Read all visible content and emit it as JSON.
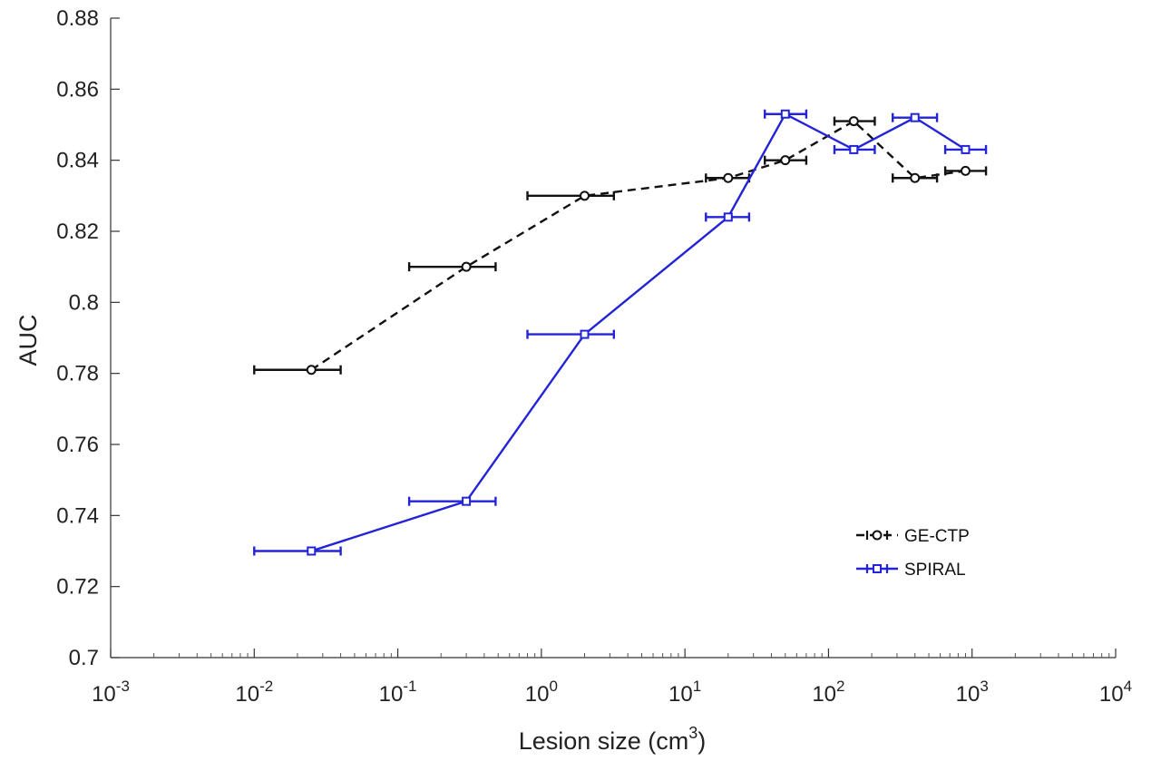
{
  "chart_data": {
    "type": "line",
    "title": "",
    "xlabel": "Lesion size (cm",
    "xlabel_superscript": "3",
    "xlabel_suffix": ")",
    "ylabel": "AUC",
    "x_scale": "log",
    "xlim": [
      0.001,
      10000
    ],
    "ylim": [
      0.7,
      0.88
    ],
    "grid": false,
    "legend_position": "bottom-right",
    "x_ticks": [
      {
        "value": 0.001,
        "base": "10",
        "exp": "-3"
      },
      {
        "value": 0.01,
        "base": "10",
        "exp": "-2"
      },
      {
        "value": 0.1,
        "base": "10",
        "exp": "-1"
      },
      {
        "value": 1,
        "base": "10",
        "exp": "0"
      },
      {
        "value": 10,
        "base": "10",
        "exp": "1"
      },
      {
        "value": 100,
        "base": "10",
        "exp": "2"
      },
      {
        "value": 1000,
        "base": "10",
        "exp": "3"
      },
      {
        "value": 10000,
        "base": "10",
        "exp": "4"
      }
    ],
    "y_ticks": [
      {
        "value": 0.7,
        "label": "0.7"
      },
      {
        "value": 0.72,
        "label": "0.72"
      },
      {
        "value": 0.74,
        "label": "0.74"
      },
      {
        "value": 0.76,
        "label": "0.76"
      },
      {
        "value": 0.78,
        "label": "0.78"
      },
      {
        "value": 0.8,
        "label": "0.8"
      },
      {
        "value": 0.82,
        "label": "0.82"
      },
      {
        "value": 0.84,
        "label": "0.84"
      },
      {
        "value": 0.86,
        "label": "0.86"
      },
      {
        "value": 0.88,
        "label": "0.88"
      }
    ],
    "series": [
      {
        "name": "GE-CTP",
        "color": "#111111",
        "line_style": "dashed",
        "marker": "circle",
        "points": [
          {
            "x": 0.025,
            "y": 0.781,
            "xerr": [
              0.01,
              0.04
            ]
          },
          {
            "x": 0.3,
            "y": 0.81,
            "xerr": [
              0.12,
              0.48
            ]
          },
          {
            "x": 2.0,
            "y": 0.83,
            "xerr": [
              0.8,
              3.2
            ]
          },
          {
            "x": 20,
            "y": 0.835,
            "xerr": [
              14,
              28
            ]
          },
          {
            "x": 50,
            "y": 0.84,
            "xerr": [
              36,
              70
            ]
          },
          {
            "x": 150,
            "y": 0.851,
            "xerr": [
              110,
              210
            ]
          },
          {
            "x": 400,
            "y": 0.835,
            "xerr": [
              280,
              570
            ]
          },
          {
            "x": 900,
            "y": 0.837,
            "xerr": [
              650,
              1250
            ]
          }
        ]
      },
      {
        "name": "SPIRAL",
        "color": "#2323d8",
        "line_style": "solid",
        "marker": "square",
        "points": [
          {
            "x": 0.025,
            "y": 0.73,
            "xerr": [
              0.01,
              0.04
            ]
          },
          {
            "x": 0.3,
            "y": 0.744,
            "xerr": [
              0.12,
              0.48
            ]
          },
          {
            "x": 2.0,
            "y": 0.791,
            "xerr": [
              0.8,
              3.2
            ]
          },
          {
            "x": 20,
            "y": 0.824,
            "xerr": [
              14,
              28
            ]
          },
          {
            "x": 50,
            "y": 0.853,
            "xerr": [
              36,
              70
            ]
          },
          {
            "x": 150,
            "y": 0.843,
            "xerr": [
              110,
              210
            ]
          },
          {
            "x": 400,
            "y": 0.852,
            "xerr": [
              280,
              570
            ]
          },
          {
            "x": 900,
            "y": 0.843,
            "xerr": [
              650,
              1250
            ]
          }
        ]
      }
    ]
  }
}
